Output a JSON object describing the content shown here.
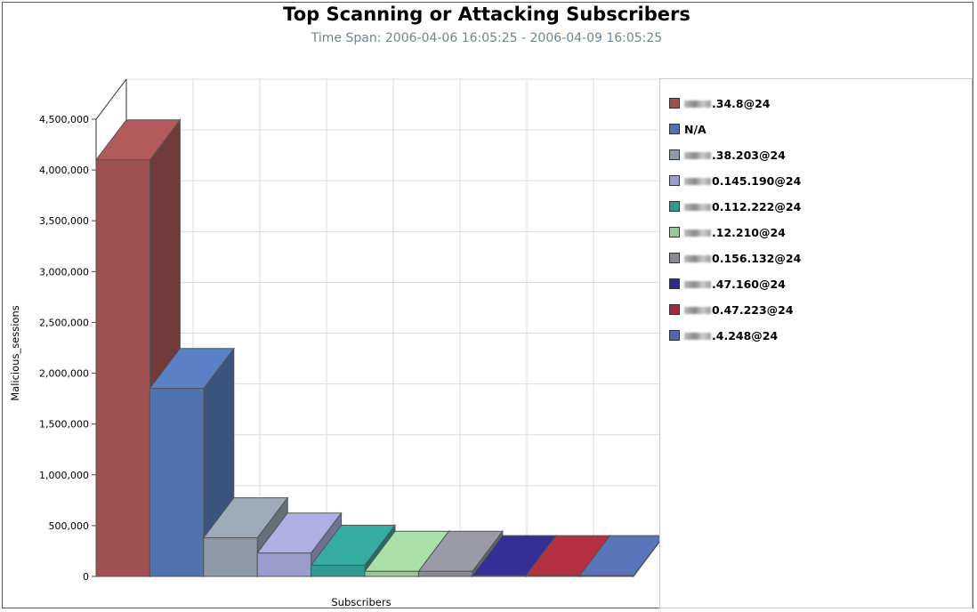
{
  "chart_data": {
    "type": "bar",
    "title": "Top Scanning or Attacking Subscribers",
    "subtitle": "Time Span: 2006-04-06 16:05:25 - 2006-04-09 16:05:25",
    "xlabel": "Subscribers",
    "ylabel": "Malicious_sessions",
    "ylim": [
      0,
      4500000
    ],
    "yticks": [
      "0",
      "500,000",
      "1,000,000",
      "1,500,000",
      "2,000,000",
      "2,500,000",
      "3,000,000",
      "3,500,000",
      "4,000,000",
      "4,500,000"
    ],
    "grid": true,
    "legend_position": "right",
    "series": [
      {
        "name": ".34.8@24",
        "value": 4100000,
        "color": "#a05050"
      },
      {
        "name": "N/A",
        "value": 1850000,
        "color": "#5073b0"
      },
      {
        "name": ".38.203@24",
        "value": 380000,
        "color": "#8b9aa6"
      },
      {
        "name": "0.145.190@24",
        "value": 230000,
        "color": "#9c9ccc"
      },
      {
        "name": "0.112.222@24",
        "value": 110000,
        "color": "#2e9a90"
      },
      {
        "name": ".12.210@24",
        "value": 50000,
        "color": "#98c898"
      },
      {
        "name": "0.156.132@24",
        "value": 50000,
        "color": "#8a8a96"
      },
      {
        "name": ".47.160@24",
        "value": 8000,
        "color": "#2e2a86"
      },
      {
        "name": "0.47.223@24",
        "value": 8000,
        "color": "#a02a3a"
      },
      {
        "name": ".4.248@24",
        "value": 8000,
        "color": "#5068a8"
      }
    ]
  }
}
